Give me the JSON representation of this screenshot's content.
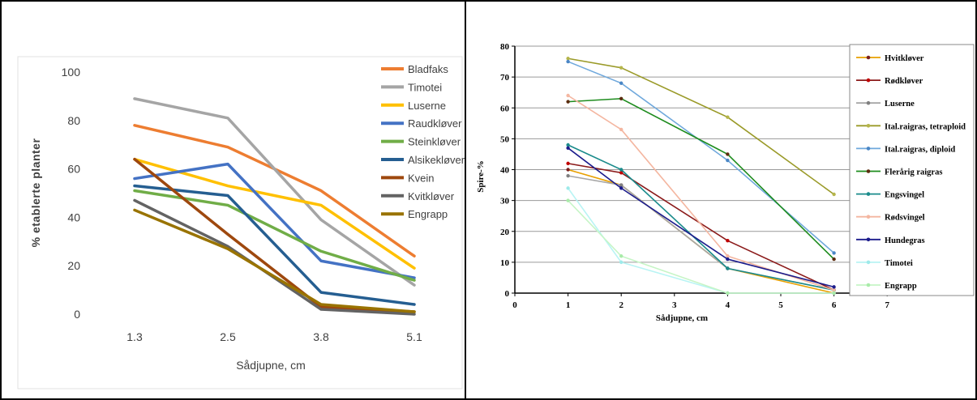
{
  "chart_data": [
    {
      "type": "line",
      "title": "",
      "xlabel": "Sådjupne, cm",
      "ylabel": "% etablerte planter",
      "categories": [
        "1.3",
        "2.5",
        "3.8",
        "5.1"
      ],
      "yticks": [
        "0",
        "20",
        "40",
        "60",
        "80",
        "100"
      ],
      "ylim": [
        0,
        100
      ],
      "grid": false,
      "legend_position": "right",
      "series": [
        {
          "name": "Bladfaks",
          "color": "#ED7D31",
          "values": [
            78,
            69,
            51,
            24
          ]
        },
        {
          "name": "Timotei",
          "color": "#A5A5A5",
          "values": [
            89,
            81,
            39,
            12
          ]
        },
        {
          "name": "Luserne",
          "color": "#FFC000",
          "values": [
            64,
            53,
            45,
            19
          ]
        },
        {
          "name": "Raudkløver",
          "color": "#4472C4",
          "values": [
            56,
            62,
            22,
            15
          ]
        },
        {
          "name": "Steinkløver",
          "color": "#70AD47",
          "values": [
            51,
            45,
            26,
            14
          ]
        },
        {
          "name": "Alsikekløver",
          "color": "#255E91",
          "values": [
            53,
            49,
            9,
            4
          ]
        },
        {
          "name": "Kvein",
          "color": "#9E480E",
          "values": [
            64,
            33,
            3,
            1
          ]
        },
        {
          "name": "Kvitkløver",
          "color": "#636363",
          "values": [
            47,
            28,
            2,
            0
          ]
        },
        {
          "name": "Engrapp",
          "color": "#997300",
          "values": [
            43,
            27,
            4,
            1
          ]
        }
      ]
    },
    {
      "type": "line",
      "title": "",
      "xlabel": "Sådjupne, cm",
      "ylabel": "Spire-%",
      "xticks": [
        "0",
        "1",
        "2",
        "3",
        "4",
        "5",
        "6",
        "7"
      ],
      "yticks": [
        "0",
        "10",
        "20",
        "30",
        "40",
        "50",
        "60",
        "70",
        "80"
      ],
      "xlim": [
        0,
        7
      ],
      "ylim": [
        0,
        80
      ],
      "grid": true,
      "legend_position": "right",
      "x": [
        1,
        2,
        4,
        6
      ],
      "series": [
        {
          "name": "Hvitkløver",
          "color": "#E8A000",
          "marker_color": "#7A1F1F",
          "values": [
            40,
            35,
            8,
            0
          ]
        },
        {
          "name": "Rødkløver",
          "color": "#8B1A1A",
          "marker_color": "#C00000",
          "values": [
            42,
            39,
            17,
            1
          ]
        },
        {
          "name": "Luserne",
          "color": "#A6A6A6",
          "marker_color": "#808080",
          "values": [
            38,
            35,
            8,
            1
          ]
        },
        {
          "name": "Ital.raigras, tetraploid",
          "color": "#9A9A28",
          "marker_color": "#B5B54A",
          "values": [
            76,
            73,
            57,
            32
          ]
        },
        {
          "name": "Ital.raigras, diploid",
          "color": "#6FA8DC",
          "marker_color": "#4A86C5",
          "values": [
            75,
            68,
            43,
            13
          ]
        },
        {
          "name": "Flerårig raigras",
          "color": "#1E8C1E",
          "marker_color": "#5B2C0F",
          "values": [
            62,
            63,
            45,
            11
          ]
        },
        {
          "name": "Engsvingel",
          "color": "#1A8B8B",
          "marker_color": "#1A8B8B",
          "values": [
            48,
            40,
            8,
            1
          ]
        },
        {
          "name": "Rødsvingel",
          "color": "#F4B6A0",
          "marker_color": "#F4B6A0",
          "values": [
            64,
            53,
            12,
            1
          ]
        },
        {
          "name": "Hundegras",
          "color": "#1C1C8C",
          "marker_color": "#1C1C8C",
          "values": [
            47,
            34,
            11,
            2
          ]
        },
        {
          "name": "Timotei",
          "color": "#B8F4F4",
          "marker_color": "#9EEAEA",
          "values": [
            34,
            10,
            0,
            0
          ]
        },
        {
          "name": "Engrapp",
          "color": "#C6F5C6",
          "marker_color": "#A9EBA9",
          "values": [
            30,
            12,
            0,
            0
          ]
        }
      ]
    }
  ]
}
